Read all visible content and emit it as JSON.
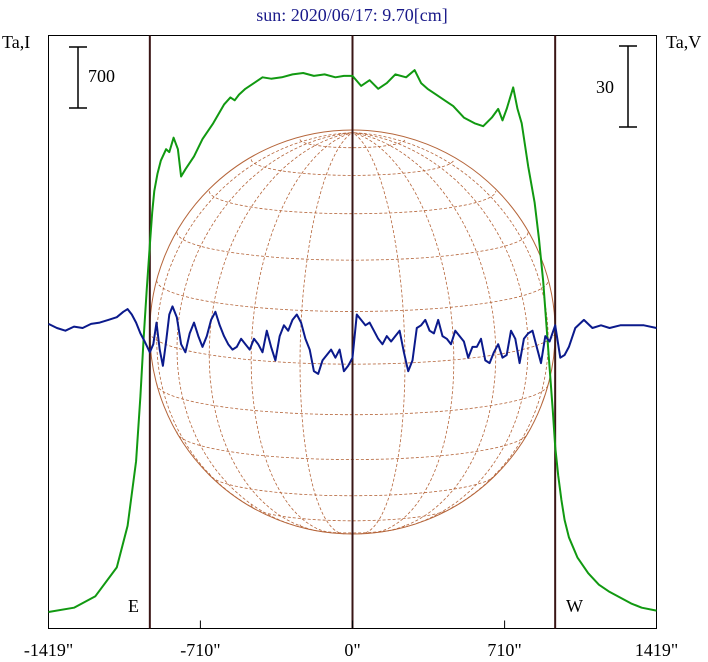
{
  "chart_data": {
    "type": "line",
    "title": "sun: 2020/06/17: 9.70[cm]",
    "ylabel_left": "Ta,I",
    "ylabel_right": "Ta,V",
    "scale_left": "700",
    "scale_right": "30",
    "disk_labels": {
      "east": "E",
      "west": "W"
    },
    "xlim": [
      -1419,
      1419
    ],
    "x_ticks": [
      {
        "value": -1419,
        "label": "-1419\""
      },
      {
        "value": -710,
        "label": "-710\""
      },
      {
        "value": 0,
        "label": "0\""
      },
      {
        "value": 710,
        "label": "710\""
      },
      {
        "value": 1419,
        "label": "1419\""
      }
    ],
    "limb_positions": [
      -946,
      0,
      946
    ],
    "series": [
      {
        "key": "intensity",
        "color": "#119911",
        "x": [
          -1419,
          -1300,
          -1200,
          -1100,
          -1050,
          -1010,
          -990,
          -975,
          -960,
          -946,
          -935,
          -925,
          -910,
          -895,
          -870,
          -855,
          -835,
          -815,
          -800,
          -780,
          -740,
          -700,
          -650,
          -600,
          -570,
          -550,
          -530,
          -500,
          -460,
          -420,
          -380,
          -330,
          -280,
          -230,
          -180,
          -130,
          -80,
          -40,
          0,
          40,
          80,
          120,
          160,
          200,
          250,
          290,
          320,
          350,
          390,
          430,
          470,
          520,
          570,
          610,
          650,
          680,
          700,
          720,
          750,
          770,
          790,
          820,
          850,
          870,
          890,
          905,
          920,
          935,
          946,
          960,
          975,
          990,
          1010,
          1050,
          1100,
          1150,
          1200,
          1250,
          1300,
          1350,
          1419
        ],
        "y": [
          0,
          30,
          110,
          310,
          600,
          1050,
          1500,
          1900,
          2250,
          2550,
          2780,
          2930,
          3050,
          3140,
          3220,
          3200,
          3300,
          3220,
          3030,
          3080,
          3170,
          3290,
          3400,
          3530,
          3580,
          3560,
          3600,
          3640,
          3680,
          3720,
          3710,
          3720,
          3740,
          3750,
          3730,
          3740,
          3720,
          3730,
          3730,
          3660,
          3700,
          3640,
          3680,
          3740,
          3720,
          3770,
          3680,
          3640,
          3600,
          3560,
          3520,
          3440,
          3400,
          3380,
          3440,
          3500,
          3420,
          3500,
          3650,
          3500,
          3400,
          3100,
          2850,
          2600,
          2300,
          2000,
          1700,
          1400,
          1150,
          950,
          780,
          640,
          520,
          380,
          270,
          190,
          140,
          100,
          60,
          30,
          10
        ]
      },
      {
        "key": "polarization",
        "color": "#0b1a8c",
        "x": [
          -1419,
          -1380,
          -1340,
          -1300,
          -1260,
          -1220,
          -1180,
          -1140,
          -1100,
          -1070,
          -1050,
          -1030,
          -1010,
          -990,
          -970,
          -946,
          -930,
          -915,
          -900,
          -885,
          -870,
          -855,
          -840,
          -820,
          -800,
          -780,
          -760,
          -740,
          -720,
          -700,
          -680,
          -660,
          -640,
          -620,
          -600,
          -580,
          -560,
          -540,
          -520,
          -500,
          -480,
          -460,
          -440,
          -420,
          -400,
          -380,
          -360,
          -340,
          -320,
          -300,
          -280,
          -260,
          -240,
          -220,
          -200,
          -180,
          -160,
          -140,
          -120,
          -100,
          -80,
          -60,
          -40,
          -20,
          0,
          20,
          40,
          60,
          80,
          100,
          120,
          140,
          160,
          180,
          200,
          220,
          240,
          260,
          280,
          300,
          320,
          340,
          360,
          380,
          400,
          420,
          440,
          460,
          480,
          500,
          520,
          540,
          560,
          580,
          600,
          620,
          640,
          660,
          680,
          700,
          720,
          740,
          760,
          780,
          800,
          820,
          840,
          860,
          880,
          900,
          920,
          946,
          970,
          990,
          1010,
          1040,
          1080,
          1120,
          1160,
          1200,
          1250,
          1300,
          1360,
          1419
        ],
        "y": [
          1.5,
          0,
          -1,
          0.5,
          0,
          1.5,
          2,
          3,
          4,
          6,
          7,
          5,
          2,
          -2,
          -5,
          -9,
          -6,
          2,
          -8,
          -14,
          -5,
          5,
          8,
          4,
          -6,
          -9,
          -2,
          2,
          -3,
          -7,
          -3,
          3,
          6,
          1,
          -3,
          -6,
          -8,
          -7,
          -4,
          -6,
          -8,
          -4,
          -6,
          -9,
          -1,
          -7,
          -12,
          -3,
          1,
          -1,
          3,
          5,
          2,
          -4,
          -8,
          -16,
          -17,
          -12,
          -10,
          -8,
          -11,
          -8,
          -16,
          -14,
          -11,
          5,
          3,
          1,
          2,
          -1,
          -4,
          -6,
          -3,
          -5,
          -3,
          -1,
          -9,
          -16,
          -12,
          0,
          1,
          3,
          -1,
          -2,
          3,
          -3,
          -4,
          -6,
          -1,
          -3,
          -5,
          -11,
          -7,
          -7,
          -4,
          -12,
          -13,
          -9,
          -6,
          -11,
          -10,
          -1,
          -4,
          -13,
          -4,
          -2,
          -1,
          -7,
          -13,
          -3,
          -5,
          1,
          -11,
          -10,
          -7,
          0,
          3,
          0,
          1,
          0,
          1,
          1,
          1,
          0
        ],
        "_unit_note": ""
      }
    ]
  }
}
